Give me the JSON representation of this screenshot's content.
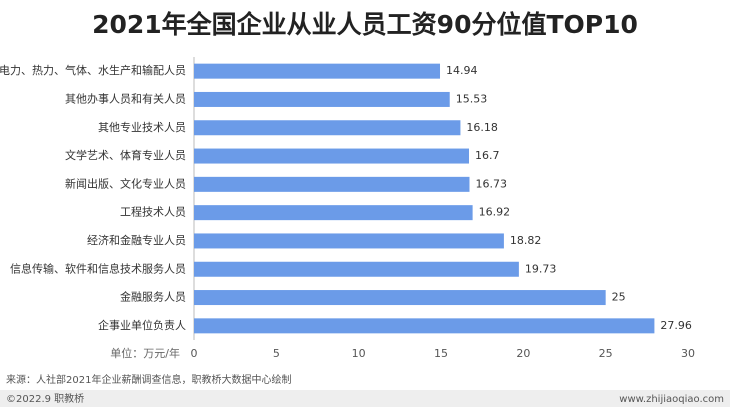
{
  "chart_data": {
    "type": "bar",
    "orientation": "horizontal",
    "title": "2021年全国企业从业人员工资90分位值TOP10",
    "categories": [
      "电力、热力、气体、水生产和输配人员",
      "其他办事人员和有关人员",
      "其他专业技术人员",
      "文学艺术、体育专业人员",
      "新闻出版、文化专业人员",
      "工程技术人员",
      "经济和金融专业人员",
      "信息传输、软件和信息技术服务人员",
      "金融服务人员",
      "企事业单位负责人"
    ],
    "values": [
      14.94,
      15.53,
      16.18,
      16.7,
      16.73,
      16.92,
      18.82,
      19.73,
      25,
      27.96
    ],
    "color": "#6b9be8",
    "xlim": [
      0,
      30
    ],
    "xticks": [
      0,
      5,
      10,
      15,
      20,
      25,
      30
    ],
    "xlabel": "单位：万元/年",
    "source": "来源：人社部2021年企业薪酬调查信息，职教桥大数据中心绘制",
    "footer_left": "©2022.9 职教桥",
    "footer_right": "www.zhijiaoqiao.com"
  }
}
